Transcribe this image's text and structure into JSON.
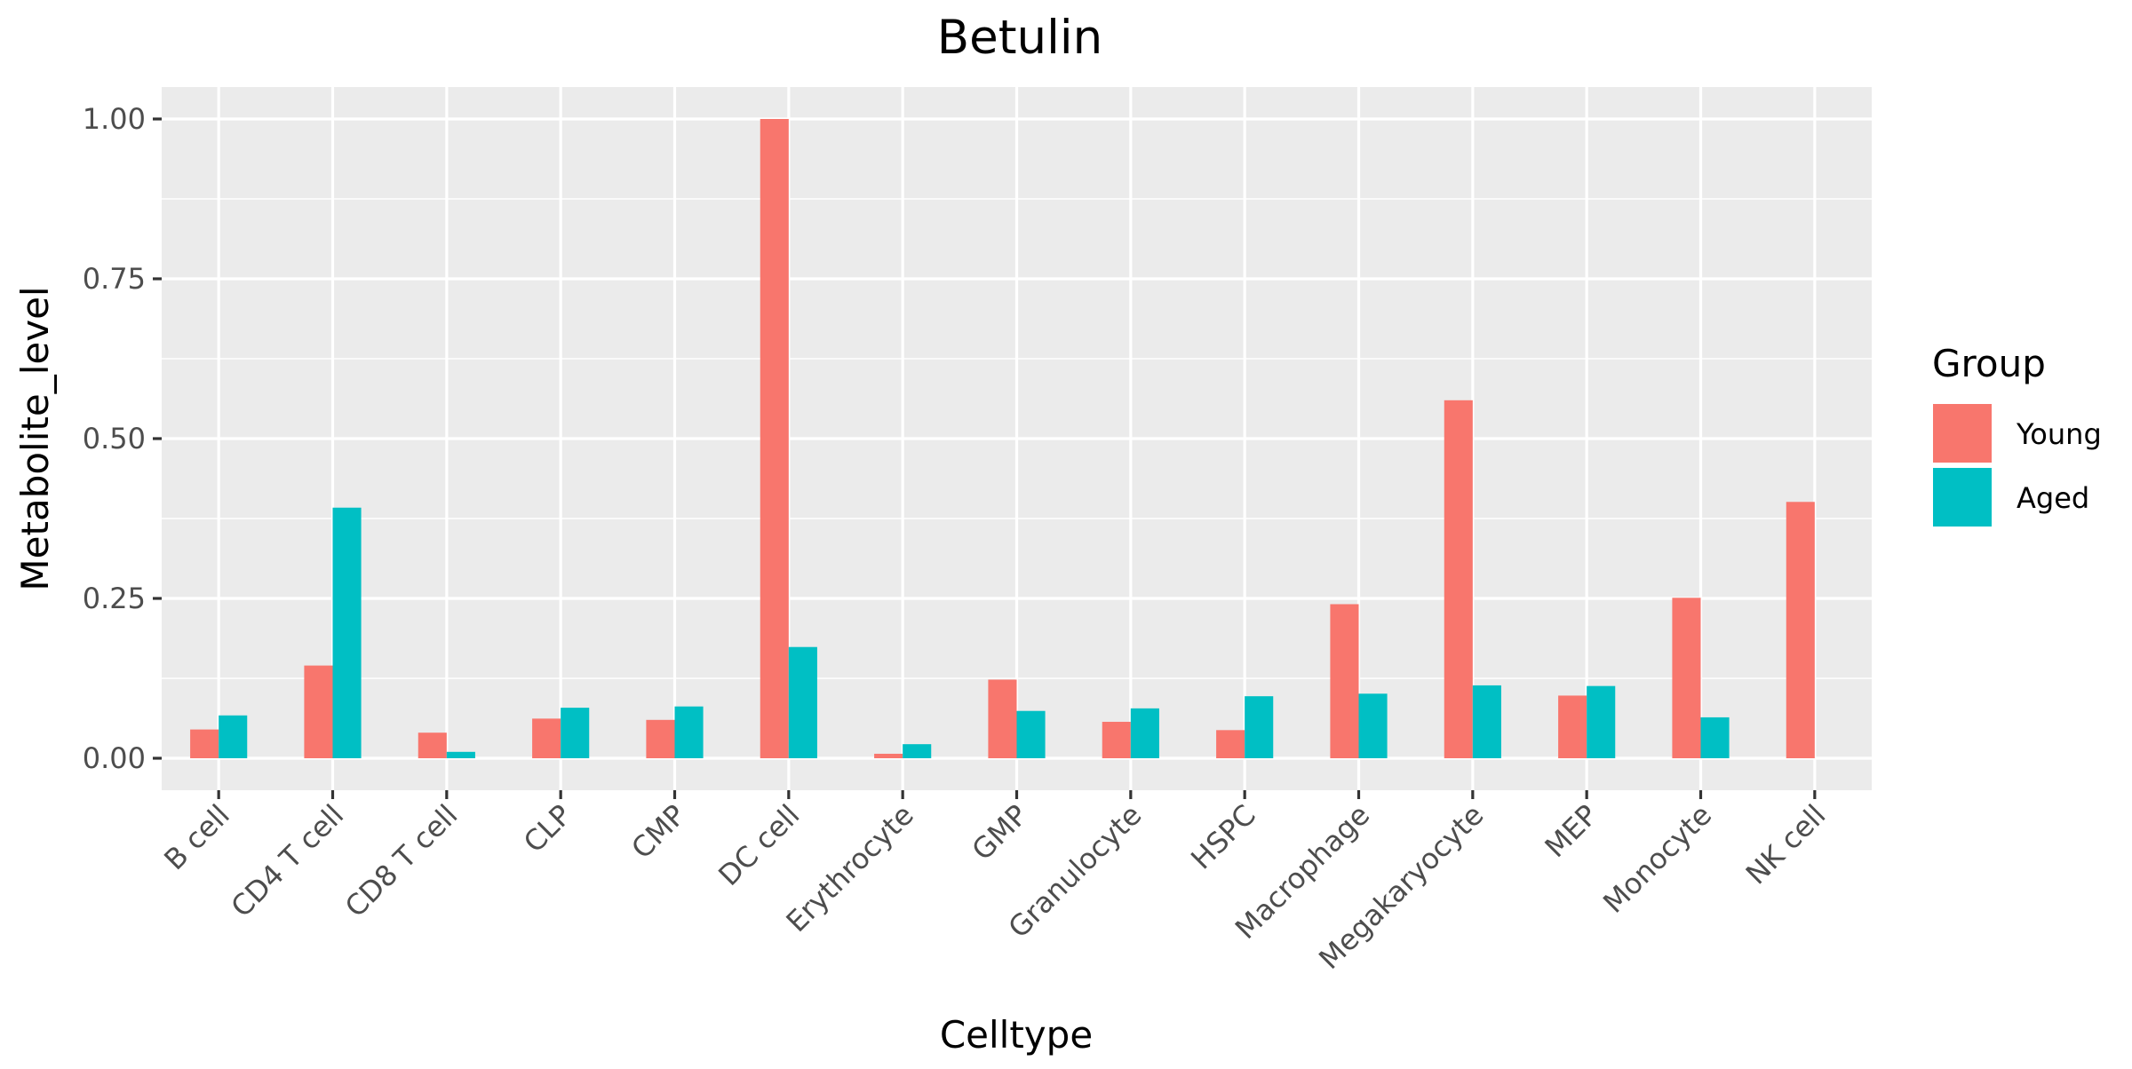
{
  "chart_data": {
    "type": "bar",
    "title": "Betulin",
    "xlabel": "Celltype",
    "ylabel": "Metabolite_level",
    "ylim": [
      -0.05,
      1.05
    ],
    "yticks": [
      {
        "value": 0.0,
        "label": "0.00"
      },
      {
        "value": 0.25,
        "label": "0.25"
      },
      {
        "value": 0.5,
        "label": "0.50"
      },
      {
        "value": 0.75,
        "label": "0.75"
      },
      {
        "value": 1.0,
        "label": "1.00"
      }
    ],
    "grid": true,
    "legend_position": "right",
    "legend_title": "Group",
    "categories": [
      "B cell",
      "CD4 T cell",
      "CD8 T cell",
      "CLP",
      "CMP",
      "DC cell",
      "Erythrocyte",
      "GMP",
      "Granulocyte",
      "HSPC",
      "Macrophage",
      "Megakaryocyte",
      "MEP",
      "Monocyte",
      "NK cell"
    ],
    "series": [
      {
        "name": "Young",
        "color": "#F8766D",
        "values": [
          0.045,
          0.145,
          0.04,
          0.062,
          0.06,
          1.0,
          0.007,
          0.123,
          0.057,
          0.044,
          0.241,
          0.56,
          0.098,
          0.251,
          0.401
        ]
      },
      {
        "name": "Aged",
        "color": "#00BFC4",
        "values": [
          0.067,
          0.392,
          0.01,
          0.079,
          0.081,
          0.174,
          0.022,
          0.074,
          0.078,
          0.097,
          0.101,
          0.114,
          0.113,
          0.064,
          null
        ]
      }
    ]
  }
}
